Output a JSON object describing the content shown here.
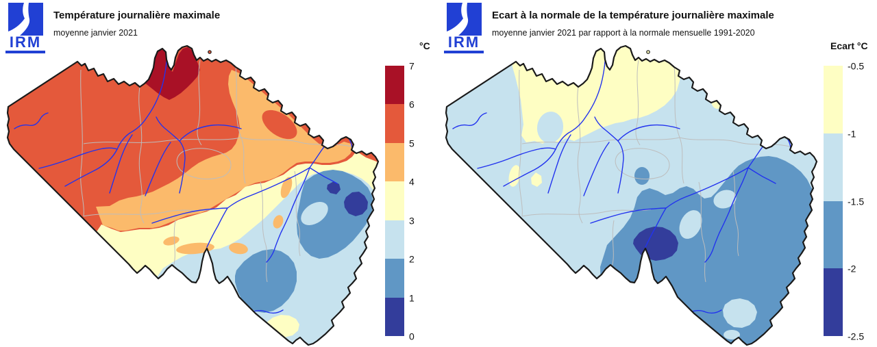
{
  "palette": {
    "dark_red": "#A91126",
    "red": "#E4593B",
    "orange": "#FBBA6B",
    "yellow": "#FEFEC3",
    "light_blue": "#C6E2EE",
    "mid_blue": "#6097C5",
    "dark_blue": "#333D9B",
    "river": "#2233EE",
    "province": "#BDBDBD",
    "outline": "#1A1A1A",
    "logo_blue": "#2140D4"
  },
  "left_panel": {
    "logo_text": "IRM",
    "title": "Température journalière maximale",
    "subtitle": "moyenne janvier 2021",
    "legend": {
      "header": "°C",
      "labels": [
        "7",
        "6",
        "5",
        "4",
        "3",
        "2",
        "1",
        "0"
      ],
      "colors": [
        "#A91126",
        "#E4593B",
        "#FBBA6B",
        "#FEFEC3",
        "#C6E2EE",
        "#6097C5",
        "#333D9B"
      ]
    }
  },
  "right_panel": {
    "logo_text": "IRM",
    "title": "Ecart à la normale de la température journalière maximale",
    "subtitle": "moyenne janvier 2021 par rapport à la normale mensuelle 1991-2020",
    "legend": {
      "header": "Ecart °C",
      "labels": [
        "-0.5",
        "-1",
        "-1.5",
        "-2",
        "-2.5"
      ],
      "colors": [
        "#FEFEC3",
        "#C6E2EE",
        "#6097C5",
        "#333D9B"
      ]
    }
  },
  "map_data": {
    "type": "choropleth-isopleth map pair",
    "left_map": {
      "unit": "°C",
      "scale_breaks": [
        0,
        1,
        2,
        3,
        4,
        5,
        6,
        7
      ]
    },
    "right_map": {
      "unit": "°C",
      "scale_breaks": [
        -2.5,
        -2,
        -1.5,
        -1,
        -0.5
      ]
    }
  }
}
